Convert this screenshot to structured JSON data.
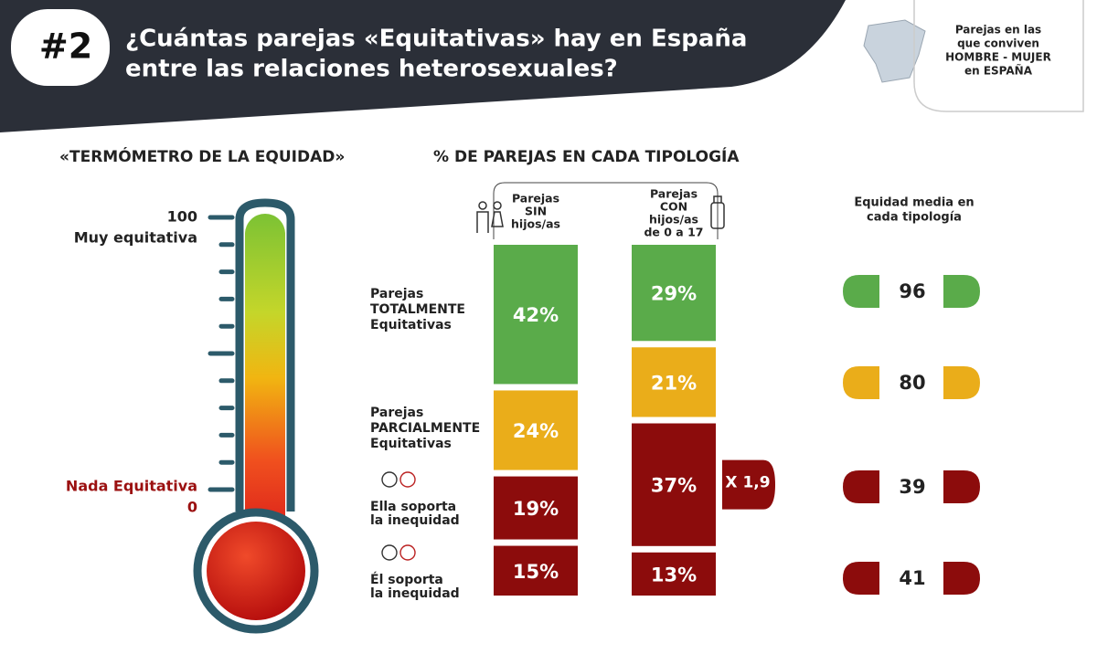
{
  "header": {
    "number": "#2",
    "title": [
      "¿Cuántas parejas «Equitativas» hay en España",
      "entre las relaciones heterosexuales?"
    ]
  },
  "badge": {
    "lines": [
      "Parejas en las",
      "que conviven",
      "HOMBRE - MUJER",
      "en ESPAÑA"
    ]
  },
  "thermometer": {
    "title": "«TERMÓMETRO DE LA EQUIDAD»",
    "top_value": 100,
    "top_label": "Muy equitativa",
    "bottom_label": "Nada Equitativa",
    "bottom_value": 0
  },
  "typologies": {
    "title": "% DE PAREJAS EN CADA TIPOLOGÍA",
    "rows": [
      [
        "Parejas",
        "TOTALMENTE",
        "Equitativas"
      ],
      [
        "Parejas",
        "PARCIALMENTE",
        "Equitativas"
      ],
      [
        "Ella soporta",
        "la inequidad"
      ],
      [
        "Él soporta",
        "la inequidad"
      ]
    ],
    "columns": [
      {
        "header": [
          "Parejas",
          "SIN",
          "hijos/as"
        ],
        "values": [
          42,
          24,
          19,
          15
        ],
        "value_labels": [
          "42%",
          "24%",
          "19%",
          "15%"
        ],
        "colors": [
          "#5aab4a",
          "#eaad1a",
          "#8c0c0c",
          "#8c0c0c"
        ]
      },
      {
        "header": [
          "Parejas",
          "CON",
          "hijos/as",
          "de 0 a 17"
        ],
        "values": [
          29,
          21,
          37,
          13
        ],
        "value_labels": [
          "29%",
          "21%",
          "37%",
          "13%"
        ],
        "colors": [
          "#5aab4a",
          "#eaad1a",
          "#8c0c0c",
          "#8c0c0c"
        ]
      }
    ],
    "ratio": "X 1,9"
  },
  "equity": {
    "title": [
      "Equidad media en",
      "cada tipología"
    ],
    "values": [
      96,
      80,
      39,
      41
    ],
    "colors": [
      "#5aab4a",
      "#eaad1a",
      "#8c0c0c",
      "#8c0c0c"
    ]
  }
}
